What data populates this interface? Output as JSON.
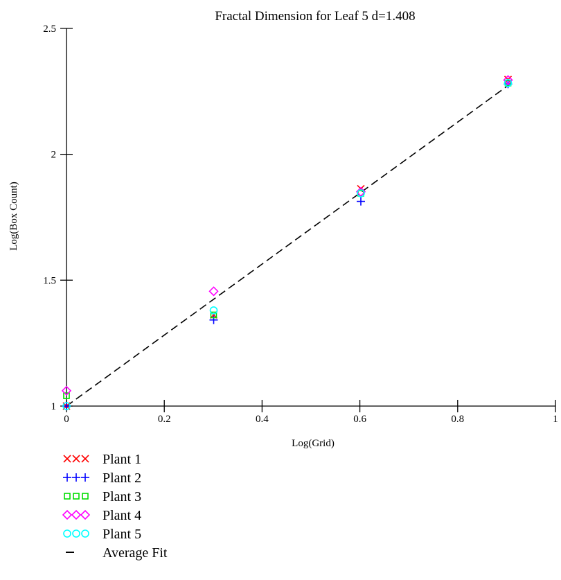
{
  "chart_data": {
    "type": "scatter",
    "title": "Fractal Dimension for Leaf 5 d=1.408",
    "xlabel": "Log(Grid)",
    "ylabel": "Log(Box Count)",
    "xlim": [
      0,
      1
    ],
    "ylim": [
      1,
      2.5
    ],
    "x_ticks": [
      {
        "value": 0,
        "label": "0"
      },
      {
        "value": 0.2,
        "label": "0.2"
      },
      {
        "value": 0.4,
        "label": "0.4"
      },
      {
        "value": 0.6,
        "label": "0.6"
      },
      {
        "value": 0.8,
        "label": "0.8"
      },
      {
        "value": 1,
        "label": "1"
      }
    ],
    "y_ticks": [
      {
        "value": 1,
        "label": "1"
      },
      {
        "value": 1.5,
        "label": "1.5"
      },
      {
        "value": 2,
        "label": "2"
      },
      {
        "value": 2.5,
        "label": "2.5"
      }
    ],
    "grid": false,
    "legend_position": "bottom-left",
    "series": [
      {
        "name": "Plant 1",
        "marker": "x",
        "color": "#ff0000",
        "x": [
          0,
          0.301,
          0.602,
          0.903
        ],
        "y": [
          1.0,
          1.362,
          1.863,
          2.297
        ]
      },
      {
        "name": "Plant 2",
        "marker": "+",
        "color": "#0000ff",
        "x": [
          0,
          0.301,
          0.602,
          0.903
        ],
        "y": [
          1.0,
          1.342,
          1.813,
          2.279
        ]
      },
      {
        "name": "Plant 3",
        "marker": "square",
        "color": "#00dd00",
        "x": [
          0,
          0.301,
          0.602,
          0.903
        ],
        "y": [
          1.041,
          1.362,
          1.845,
          2.283
        ]
      },
      {
        "name": "Plant 4",
        "marker": "diamond",
        "color": "#ff00ff",
        "x": [
          0,
          0.301,
          0.602,
          0.903
        ],
        "y": [
          1.061,
          1.456,
          1.851,
          2.295
        ]
      },
      {
        "name": "Plant 5",
        "marker": "circle",
        "color": "#00ffff",
        "x": [
          0,
          0.301,
          0.602,
          0.903
        ],
        "y": [
          1.0,
          1.38,
          1.845,
          2.283
        ]
      },
      {
        "name": "Average Fit",
        "marker": "dashed-line",
        "color": "#000000",
        "x": [
          0,
          0.903
        ],
        "y": [
          1.0,
          2.273
        ]
      }
    ]
  }
}
